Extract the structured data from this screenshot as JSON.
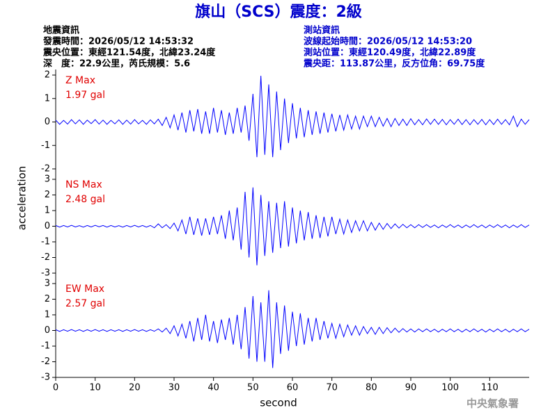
{
  "header": {
    "title": "旗山（SCS）震度：2級",
    "left": [
      "地震資訊",
      "發震時間：2026/05/12 14:53:32",
      "震央位置：東經121.54度，北緯23.24度",
      "深　度：22.9公里，芮氏規模：5.6"
    ],
    "right": [
      "測站資訊",
      "波線起始時間：2026/05/12 14:53:20",
      "測站位置：東經120.49度，北緯22.89度",
      "震央距：113.87公里，反方位角：69.75度"
    ]
  },
  "footer": "中央氣象署",
  "chart_data": {
    "type": "line",
    "xlabel": "second",
    "ylabel": "acceleration",
    "xlim": [
      0,
      120
    ],
    "xticks": [
      0,
      10,
      20,
      30,
      40,
      50,
      60,
      70,
      80,
      90,
      100,
      110
    ],
    "x": [
      0,
      1,
      2,
      3,
      4,
      5,
      6,
      7,
      8,
      9,
      10,
      11,
      12,
      13,
      14,
      15,
      16,
      17,
      18,
      19,
      20,
      21,
      22,
      23,
      24,
      25,
      26,
      27,
      28,
      29,
      30,
      31,
      32,
      33,
      34,
      35,
      36,
      37,
      38,
      39,
      40,
      41,
      42,
      43,
      44,
      45,
      46,
      47,
      48,
      49,
      50,
      51,
      52,
      53,
      54,
      55,
      56,
      57,
      58,
      59,
      60,
      61,
      62,
      63,
      64,
      65,
      66,
      67,
      68,
      69,
      70,
      71,
      72,
      73,
      74,
      75,
      76,
      77,
      78,
      79,
      80,
      81,
      82,
      83,
      84,
      85,
      86,
      87,
      88,
      89,
      90,
      91,
      92,
      93,
      94,
      95,
      96,
      97,
      98,
      99,
      100,
      101,
      102,
      103,
      104,
      105,
      106,
      107,
      108,
      109,
      110,
      111,
      112,
      113,
      114,
      115,
      116,
      117,
      118,
      119,
      120
    ],
    "series": [
      {
        "name": "Z Max",
        "max_label": "1.97 gal",
        "color": "#0000ff",
        "ylim": [
          -2,
          2
        ],
        "yticks": [
          -2,
          -1,
          0,
          1,
          2
        ],
        "values": [
          0.08,
          -0.1,
          0.07,
          -0.09,
          0.1,
          -0.08,
          0.09,
          -0.1,
          0.08,
          -0.07,
          0.1,
          -0.09,
          0.08,
          -0.1,
          0.07,
          -0.08,
          0.09,
          -0.1,
          0.08,
          -0.09,
          0.1,
          -0.08,
          0.07,
          -0.1,
          0.09,
          -0.08,
          0.12,
          -0.15,
          0.2,
          -0.25,
          0.3,
          -0.35,
          0.4,
          -0.45,
          0.5,
          -0.4,
          0.55,
          -0.5,
          0.45,
          -0.5,
          0.6,
          -0.45,
          0.5,
          -0.55,
          0.4,
          -0.5,
          0.6,
          -0.45,
          0.7,
          -0.8,
          1.2,
          -1.5,
          1.97,
          -1.4,
          1.6,
          -1.5,
          1.3,
          -1.2,
          1.0,
          -0.9,
          0.8,
          -0.7,
          0.6,
          -0.65,
          0.5,
          -0.55,
          0.45,
          -0.5,
          0.4,
          -0.45,
          0.35,
          -0.4,
          0.3,
          -0.35,
          0.3,
          -0.3,
          0.25,
          -0.3,
          0.25,
          -0.2,
          0.25,
          -0.2,
          0.2,
          -0.18,
          0.15,
          -0.2,
          0.15,
          -0.15,
          0.12,
          -0.15,
          0.14,
          -0.12,
          0.1,
          -0.12,
          0.13,
          -0.1,
          0.12,
          -0.1,
          0.11,
          -0.12,
          0.1,
          -0.1,
          0.12,
          -0.11,
          0.1,
          -0.12,
          0.1,
          -0.1,
          0.11,
          -0.12,
          0.1,
          -0.11,
          0.12,
          -0.1,
          0.1,
          -0.12,
          0.25,
          -0.2,
          0.12,
          -0.1,
          0.1
        ]
      },
      {
        "name": "NS Max",
        "max_label": "2.48 gal",
        "color": "#0000ff",
        "ylim": [
          -3,
          3
        ],
        "yticks": [
          -3,
          -2,
          -1,
          0,
          1,
          2,
          3
        ],
        "values": [
          0.05,
          -0.06,
          0.05,
          -0.05,
          0.06,
          -0.05,
          0.04,
          -0.06,
          0.05,
          -0.05,
          0.06,
          -0.04,
          0.05,
          -0.06,
          0.05,
          -0.05,
          0.04,
          -0.06,
          0.05,
          -0.05,
          0.06,
          -0.05,
          0.05,
          -0.06,
          0.05,
          -0.1,
          0.15,
          -0.1,
          0.1,
          -0.15,
          0.2,
          -0.3,
          0.4,
          -0.5,
          0.6,
          -0.55,
          0.5,
          -0.6,
          0.5,
          -0.55,
          0.6,
          -0.5,
          0.7,
          -0.8,
          1.0,
          -0.9,
          1.2,
          -1.5,
          2.2,
          -2.0,
          2.48,
          -2.5,
          2.0,
          -1.9,
          1.6,
          -1.7,
          1.5,
          -1.4,
          1.6,
          -1.3,
          1.2,
          -1.1,
          1.0,
          -0.9,
          0.9,
          -0.8,
          0.7,
          -0.75,
          0.6,
          -0.65,
          0.6,
          -0.5,
          0.45,
          -0.5,
          0.4,
          -0.4,
          0.35,
          -0.3,
          0.35,
          -0.3,
          0.25,
          -0.25,
          0.2,
          -0.2,
          0.18,
          -0.15,
          0.15,
          -0.12,
          0.12,
          -0.1,
          0.1,
          -0.1,
          0.1,
          -0.08,
          0.1,
          -0.08,
          0.08,
          -0.1,
          0.08,
          -0.08,
          0.1,
          -0.08,
          0.08,
          -0.1,
          0.08,
          -0.08,
          0.1,
          -0.08,
          0.08,
          -0.1,
          0.08,
          -0.08,
          0.1,
          -0.08,
          0.08,
          -0.1,
          0.08,
          -0.08,
          0.1,
          -0.08,
          0.08
        ]
      },
      {
        "name": "EW Max",
        "max_label": "2.57 gal",
        "color": "#0000ff",
        "ylim": [
          -3,
          3
        ],
        "yticks": [
          -3,
          -2,
          -1,
          0,
          1,
          2,
          3
        ],
        "values": [
          0.05,
          -0.06,
          0.05,
          -0.05,
          0.06,
          -0.05,
          0.05,
          -0.06,
          0.05,
          -0.05,
          0.06,
          -0.05,
          0.05,
          -0.06,
          0.05,
          -0.05,
          0.05,
          -0.06,
          0.05,
          -0.05,
          0.06,
          -0.05,
          0.05,
          -0.06,
          0.05,
          -0.05,
          0.1,
          -0.1,
          0.15,
          -0.2,
          0.3,
          -0.35,
          0.4,
          -0.5,
          0.6,
          -0.7,
          0.8,
          -0.6,
          1.0,
          -0.7,
          0.6,
          -0.8,
          0.7,
          -0.6,
          0.8,
          -0.9,
          1.0,
          -1.2,
          1.5,
          -1.8,
          2.2,
          -2.0,
          1.8,
          -2.0,
          2.57,
          -2.4,
          1.8,
          -1.5,
          1.6,
          -1.3,
          1.2,
          -1.0,
          1.1,
          -0.9,
          0.8,
          -0.7,
          0.8,
          -0.6,
          0.6,
          -0.5,
          0.45,
          -0.5,
          0.4,
          -0.4,
          0.35,
          -0.3,
          0.3,
          -0.3,
          0.25,
          -0.2,
          0.2,
          -0.25,
          0.2,
          -0.2,
          0.18,
          -0.15,
          0.15,
          -0.12,
          0.12,
          -0.1,
          0.1,
          -0.1,
          0.1,
          -0.08,
          0.1,
          -0.08,
          0.08,
          -0.1,
          0.08,
          -0.08,
          0.1,
          -0.08,
          0.08,
          -0.1,
          0.08,
          -0.08,
          0.1,
          -0.08,
          0.08,
          -0.1,
          0.08,
          -0.08,
          0.1,
          -0.08,
          0.08,
          -0.1,
          0.08,
          -0.08,
          0.1,
          -0.08,
          0.08
        ]
      }
    ]
  }
}
